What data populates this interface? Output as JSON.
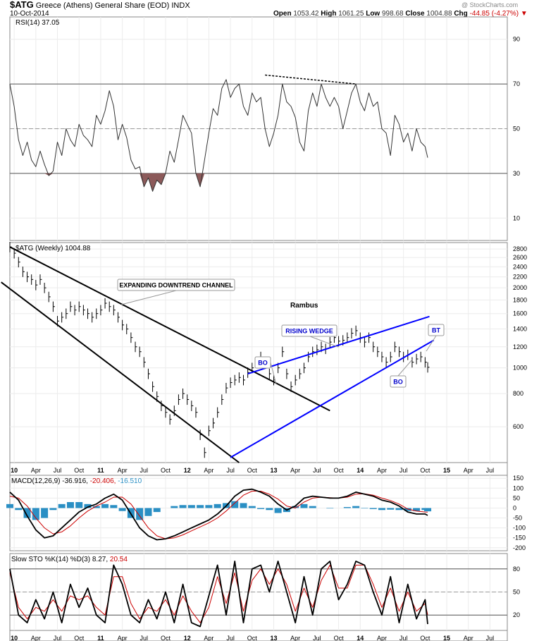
{
  "header": {
    "symbol": "$ATG",
    "name": "Greece (Athens) General Share (EOD)",
    "exchange": "INDX",
    "date": "10-Oct-2014",
    "open_label": "Open",
    "open": "1053.42",
    "high_label": "High",
    "high": "1061.25",
    "low_label": "Low",
    "low": "998.68",
    "close_label": "Close",
    "close": "1004.88",
    "chg_label": "Chg",
    "chg": "-44.85 (-4.27%)",
    "watermark": "@ StockCharts.com"
  },
  "chart_data": [
    {
      "type": "line",
      "panel": "rsi",
      "legend": "RSI(14) 37.05",
      "y_ticks": [
        90,
        70,
        50,
        30,
        10
      ],
      "ylim": [
        0,
        100
      ],
      "reference_lines": [
        70,
        50,
        30
      ],
      "x": [
        2009.95,
        2010.0,
        2010.05,
        2010.1,
        2010.15,
        2010.2,
        2010.25,
        2010.3,
        2010.35,
        2010.4,
        2010.45,
        2010.5,
        2010.55,
        2010.6,
        2010.65,
        2010.7,
        2010.75,
        2010.8,
        2010.85,
        2010.9,
        2010.95,
        2011.0,
        2011.05,
        2011.1,
        2011.15,
        2011.2,
        2011.25,
        2011.3,
        2011.35,
        2011.4,
        2011.45,
        2011.5,
        2011.55,
        2011.6,
        2011.65,
        2011.7,
        2011.75,
        2011.8,
        2011.85,
        2011.9,
        2011.95,
        2012.0,
        2012.05,
        2012.1,
        2012.15,
        2012.2,
        2012.25,
        2012.3,
        2012.35,
        2012.4,
        2012.45,
        2012.5,
        2012.55,
        2012.6,
        2012.65,
        2012.7,
        2012.75,
        2012.8,
        2012.85,
        2012.9,
        2012.95,
        2013.0,
        2013.05,
        2013.1,
        2013.15,
        2013.2,
        2013.25,
        2013.3,
        2013.35,
        2013.4,
        2013.45,
        2013.5,
        2013.55,
        2013.6,
        2013.65,
        2013.7,
        2013.75,
        2013.8,
        2013.85,
        2013.9,
        2013.95,
        2014.0,
        2014.05,
        2014.1,
        2014.15,
        2014.2,
        2014.25,
        2014.3,
        2014.35,
        2014.4,
        2014.45,
        2014.5,
        2014.55,
        2014.6,
        2014.65,
        2014.7,
        2014.75,
        2014.78
      ],
      "values": [
        70,
        60,
        45,
        38,
        44,
        36,
        33,
        40,
        34,
        29,
        31,
        44,
        38,
        50,
        45,
        42,
        52,
        47,
        45,
        42,
        56,
        52,
        58,
        67,
        60,
        45,
        52,
        46,
        36,
        32,
        33,
        24,
        28,
        22,
        27,
        25,
        30,
        40,
        35,
        45,
        56,
        52,
        48,
        30,
        24,
        36,
        48,
        59,
        56,
        68,
        72,
        64,
        68,
        70,
        60,
        56,
        66,
        62,
        64,
        50,
        42,
        48,
        56,
        70,
        62,
        60,
        55,
        44,
        40,
        58,
        66,
        60,
        70,
        64,
        60,
        64,
        60,
        50,
        58,
        66,
        70,
        62,
        58,
        66,
        60,
        62,
        50,
        48,
        38,
        56,
        52,
        44,
        48,
        40,
        50,
        44,
        42,
        37.05
      ],
      "annotations": []
    },
    {
      "type": "line",
      "panel": "price",
      "legend": "$ATG (Weekly) 1004.88",
      "scale": "log",
      "y_ticks": [
        2800,
        2600,
        2400,
        2200,
        2000,
        1800,
        1600,
        1400,
        1200,
        1000,
        800,
        600
      ],
      "ylim": [
        440,
        2960
      ],
      "x": [
        2009.95,
        2010.0,
        2010.05,
        2010.1,
        2010.15,
        2010.2,
        2010.25,
        2010.3,
        2010.35,
        2010.4,
        2010.45,
        2010.5,
        2010.55,
        2010.6,
        2010.65,
        2010.7,
        2010.75,
        2010.8,
        2010.85,
        2010.9,
        2010.95,
        2011.0,
        2011.05,
        2011.1,
        2011.15,
        2011.2,
        2011.25,
        2011.3,
        2011.35,
        2011.4,
        2011.45,
        2011.5,
        2011.55,
        2011.6,
        2011.65,
        2011.7,
        2011.75,
        2011.8,
        2011.85,
        2011.9,
        2011.95,
        2012.0,
        2012.05,
        2012.1,
        2012.15,
        2012.2,
        2012.25,
        2012.3,
        2012.35,
        2012.4,
        2012.45,
        2012.5,
        2012.55,
        2012.6,
        2012.65,
        2012.7,
        2012.75,
        2012.8,
        2012.85,
        2012.9,
        2012.95,
        2013.0,
        2013.05,
        2013.1,
        2013.15,
        2013.2,
        2013.25,
        2013.3,
        2013.35,
        2013.4,
        2013.45,
        2013.5,
        2013.55,
        2013.6,
        2013.65,
        2013.7,
        2013.75,
        2013.8,
        2013.85,
        2013.9,
        2013.95,
        2014.0,
        2014.05,
        2014.1,
        2014.15,
        2014.2,
        2014.25,
        2014.3,
        2014.35,
        2014.4,
        2014.45,
        2014.5,
        2014.55,
        2014.6,
        2014.65,
        2014.7,
        2014.75,
        2014.78
      ],
      "values": [
        2850,
        2700,
        2500,
        2300,
        2200,
        2150,
        2050,
        2150,
        2000,
        1850,
        1700,
        1500,
        1550,
        1600,
        1700,
        1650,
        1700,
        1650,
        1600,
        1550,
        1600,
        1650,
        1750,
        1700,
        1650,
        1550,
        1450,
        1400,
        1300,
        1200,
        1150,
        1050,
        950,
        850,
        780,
        720,
        680,
        640,
        690,
        760,
        800,
        760,
        720,
        680,
        560,
        480,
        580,
        620,
        680,
        760,
        840,
        880,
        900,
        920,
        900,
        960,
        1000,
        1050,
        1100,
        1050,
        950,
        900,
        1000,
        1150,
        950,
        850,
        900,
        950,
        1000,
        1100,
        1150,
        1170,
        1200,
        1180,
        1250,
        1300,
        1260,
        1270,
        1300,
        1350,
        1380,
        1300,
        1250,
        1300,
        1200,
        1150,
        1100,
        1050,
        1100,
        1200,
        1150,
        1100,
        1120,
        1050,
        1080,
        1100,
        1050,
        1004.88
      ],
      "annotations": [
        {
          "text": "EXPANDING DOWNTREND CHANNEL",
          "color": "#000000"
        },
        {
          "text": "Rambus",
          "color": "#000000"
        },
        {
          "text": "RISING WEDGE",
          "color": "#0000cc"
        },
        {
          "text": "BO",
          "color": "#0000cc"
        },
        {
          "text": "BO",
          "color": "#0000cc"
        },
        {
          "text": "BT",
          "color": "#0000cc"
        }
      ],
      "trendlines": [
        {
          "name": "channel-top",
          "color": "#000000",
          "from": [
            2009.95,
            2850
          ],
          "to": [
            2013.65,
            690
          ]
        },
        {
          "name": "channel-bottom",
          "color": "#000000",
          "from": [
            2009.85,
            2100
          ],
          "to": [
            2012.6,
            440
          ]
        },
        {
          "name": "wedge-top",
          "color": "#0000ff",
          "from": [
            2012.7,
            950
          ],
          "to": [
            2014.8,
            1560
          ]
        },
        {
          "name": "wedge-bottom",
          "color": "#0000ff",
          "from": [
            2012.5,
            460
          ],
          "to": [
            2014.85,
            1270
          ]
        }
      ]
    },
    {
      "type": "line",
      "panel": "macd",
      "legend_parts": [
        "MACD(12,26,9)",
        "-36.916,",
        "-20.406,",
        "-16.510"
      ],
      "legend_colors": [
        "#000000",
        "#000000",
        "#cc0000",
        "#2a8fc4"
      ],
      "y_ticks": [
        150,
        100,
        50,
        0,
        -50,
        -100,
        -150,
        -200
      ],
      "ylim": [
        -215,
        165
      ],
      "x": [
        2009.95,
        2010.05,
        2010.15,
        2010.25,
        2010.35,
        2010.45,
        2010.55,
        2010.65,
        2010.75,
        2010.85,
        2010.95,
        2011.05,
        2011.15,
        2011.25,
        2011.35,
        2011.45,
        2011.55,
        2011.65,
        2011.75,
        2011.85,
        2011.95,
        2012.05,
        2012.15,
        2012.25,
        2012.35,
        2012.45,
        2012.55,
        2012.65,
        2012.75,
        2012.85,
        2012.95,
        2013.05,
        2013.15,
        2013.25,
        2013.35,
        2013.45,
        2013.55,
        2013.65,
        2013.75,
        2013.85,
        2013.95,
        2014.05,
        2014.15,
        2014.25,
        2014.35,
        2014.45,
        2014.55,
        2014.65,
        2014.75,
        2014.78
      ],
      "series": [
        {
          "name": "MACD",
          "color": "#000000",
          "values": [
            80,
            40,
            -40,
            -110,
            -150,
            -140,
            -100,
            -60,
            -20,
            5,
            20,
            50,
            70,
            40,
            -30,
            -100,
            -140,
            -160,
            -155,
            -140,
            -120,
            -100,
            -80,
            -60,
            -30,
            10,
            60,
            90,
            95,
            80,
            60,
            20,
            -10,
            10,
            50,
            60,
            55,
            50,
            50,
            60,
            80,
            70,
            60,
            40,
            30,
            10,
            -20,
            -30,
            -30,
            -36.916
          ]
        },
        {
          "name": "Signal",
          "color": "#cc0000",
          "values": [
            60,
            50,
            10,
            -50,
            -100,
            -130,
            -120,
            -90,
            -50,
            -15,
            10,
            30,
            55,
            55,
            20,
            -40,
            -100,
            -140,
            -155,
            -150,
            -135,
            -115,
            -95,
            -75,
            -50,
            -15,
            25,
            65,
            85,
            85,
            70,
            45,
            10,
            0,
            30,
            50,
            55,
            52,
            50,
            55,
            70,
            72,
            65,
            50,
            38,
            20,
            -5,
            -15,
            -20,
            -20.406
          ]
        },
        {
          "name": "Histogram",
          "color": "#2a8fc4",
          "values": [
            20,
            -10,
            -50,
            -60,
            -50,
            -10,
            20,
            30,
            30,
            20,
            10,
            20,
            15,
            -15,
            -50,
            -60,
            -40,
            -20,
            0,
            10,
            15,
            15,
            15,
            15,
            20,
            25,
            35,
            25,
            10,
            -5,
            -10,
            -25,
            -20,
            10,
            20,
            10,
            0,
            -2,
            0,
            5,
            10,
            -2,
            -5,
            -10,
            -8,
            -10,
            -15,
            -15,
            -10,
            -16.51
          ]
        }
      ]
    },
    {
      "type": "line",
      "panel": "sto",
      "legend_parts": [
        "Slow STO %K(14) %D(3)",
        "8.27,",
        "20.54"
      ],
      "legend_colors": [
        "#000000",
        "#000000",
        "#cc0000"
      ],
      "y_ticks": [
        80,
        50,
        20
      ],
      "ylim": [
        0,
        100
      ],
      "reference_lines": [
        80,
        50,
        20
      ],
      "x": [
        2009.95,
        2010.05,
        2010.15,
        2010.25,
        2010.35,
        2010.45,
        2010.55,
        2010.65,
        2010.75,
        2010.85,
        2010.95,
        2011.05,
        2011.15,
        2011.25,
        2011.35,
        2011.45,
        2011.55,
        2011.65,
        2011.75,
        2011.85,
        2011.95,
        2012.05,
        2012.15,
        2012.25,
        2012.35,
        2012.45,
        2012.55,
        2012.65,
        2012.75,
        2012.85,
        2012.95,
        2013.05,
        2013.15,
        2013.25,
        2013.35,
        2013.45,
        2013.55,
        2013.65,
        2013.75,
        2013.85,
        2013.95,
        2014.05,
        2014.15,
        2014.25,
        2014.35,
        2014.45,
        2014.55,
        2014.65,
        2014.75,
        2014.78
      ],
      "series": [
        {
          "name": "%K",
          "color": "#000000",
          "values": [
            80,
            20,
            10,
            40,
            15,
            50,
            10,
            60,
            30,
            55,
            20,
            10,
            85,
            60,
            20,
            10,
            40,
            15,
            50,
            10,
            60,
            10,
            5,
            45,
            85,
            20,
            90,
            10,
            80,
            85,
            50,
            90,
            50,
            10,
            70,
            20,
            80,
            90,
            40,
            60,
            90,
            85,
            50,
            20,
            70,
            10,
            60,
            15,
            40,
            8.27
          ]
        },
        {
          "name": "%D",
          "color": "#cc0000",
          "values": [
            75,
            30,
            15,
            30,
            25,
            40,
            25,
            45,
            40,
            45,
            30,
            20,
            70,
            70,
            35,
            15,
            30,
            25,
            40,
            20,
            45,
            25,
            10,
            30,
            70,
            35,
            75,
            25,
            65,
            80,
            60,
            80,
            60,
            25,
            55,
            30,
            65,
            85,
            55,
            55,
            85,
            85,
            60,
            30,
            55,
            25,
            50,
            25,
            35,
            20.54
          ]
        }
      ]
    }
  ],
  "time_axis": {
    "labels": [
      "10",
      "Apr",
      "Jul",
      "Oct",
      "11",
      "Apr",
      "Jul",
      "Oct",
      "12",
      "Apr",
      "Jul",
      "Oct",
      "13",
      "Apr",
      "Jul",
      "Oct",
      "14",
      "Apr",
      "Jul",
      "Oct",
      "15",
      "Apr",
      "Jul"
    ],
    "values": [
      2010.0,
      2010.25,
      2010.5,
      2010.75,
      2011.0,
      2011.25,
      2011.5,
      2011.75,
      2012.0,
      2012.25,
      2012.5,
      2012.75,
      2013.0,
      2013.25,
      2013.5,
      2013.75,
      2014.0,
      2014.25,
      2014.5,
      2014.75,
      2015.0,
      2015.25,
      2015.5
    ],
    "bold": [
      "10",
      "11",
      "12",
      "13",
      "14",
      "15"
    ]
  }
}
